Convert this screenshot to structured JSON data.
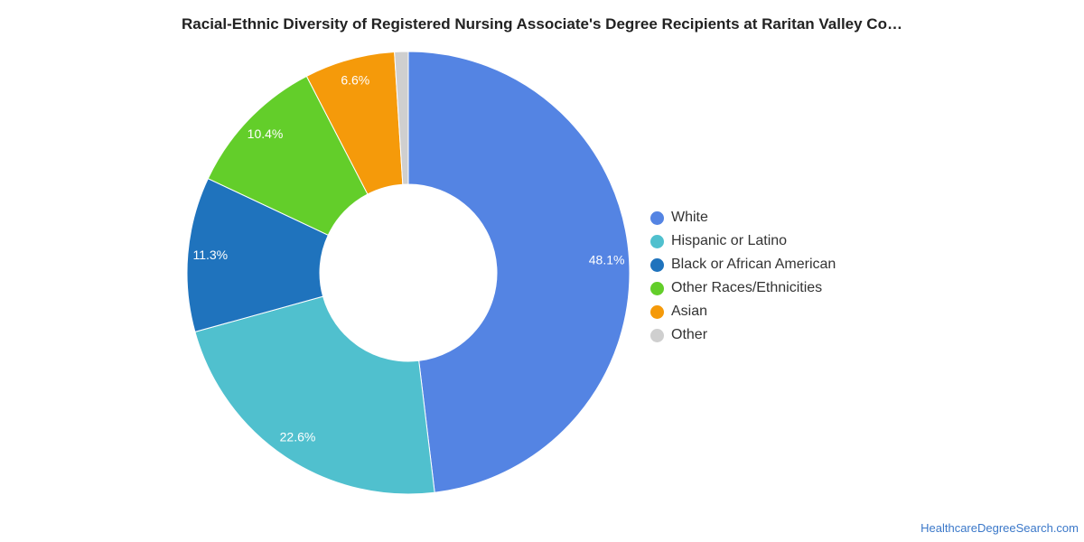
{
  "chart_data": {
    "type": "pie",
    "variant": "donut",
    "title": "Racial-Ethnic Diversity of Registered Nursing Associate's Degree Recipients at Raritan Valley Co…",
    "slices": [
      {
        "name": "White",
        "value": 48.1,
        "label": "48.1%",
        "color": "#5484e3"
      },
      {
        "name": "Hispanic or Latino",
        "value": 22.6,
        "label": "22.6%",
        "color": "#50c0ce"
      },
      {
        "name": "Black or African American",
        "value": 11.3,
        "label": "11.3%",
        "color": "#1f73bd"
      },
      {
        "name": "Other Races/Ethnicities",
        "value": 10.4,
        "label": "10.4%",
        "color": "#63ce2a"
      },
      {
        "name": "Asian",
        "value": 6.6,
        "label": "6.6%",
        "color": "#f59a0a"
      },
      {
        "name": "Other",
        "value": 1.0,
        "label": "",
        "color": "#cfcfcf"
      }
    ],
    "legend_position": "right"
  },
  "footer": {
    "source_text": "HealthcareDegreeSearch.com"
  }
}
